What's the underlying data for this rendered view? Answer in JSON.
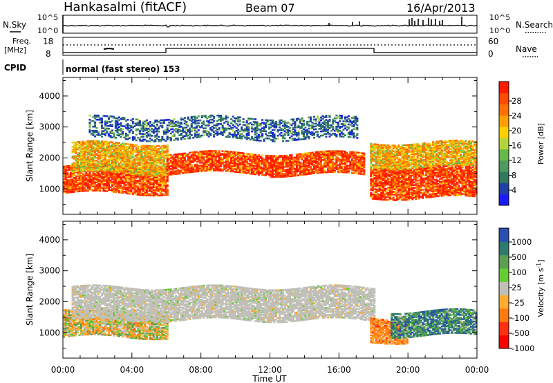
{
  "header": {
    "station": "Hankasalmi (fitACF)",
    "beam": "Beam 07",
    "date": "16/Apr/2013"
  },
  "nsky_panel": {
    "left_label": "N.Sky",
    "left_ticks": [
      "10^5",
      "10^0"
    ],
    "right_ticks": [
      "10^5",
      "10^0"
    ],
    "right_label": "N.Search"
  },
  "freq_panel": {
    "left_label_1": "Freq.",
    "left_label_2": "[MHz]",
    "left_ticks": [
      "18",
      "8"
    ],
    "right_ticks": [
      "60",
      "0"
    ],
    "right_label": "Nave"
  },
  "cpid": {
    "label": "CPID",
    "mode": "normal (fast stereo) 153"
  },
  "chart_data": [
    {
      "type": "heatmap",
      "name_on_plot": "Power",
      "ylabel": "Slant Range [km]",
      "xlabel": "Time UT",
      "x_ticks": [
        "00:00",
        "04:00",
        "08:00",
        "12:00",
        "16:00",
        "20:00",
        "00:00"
      ],
      "y_ticks": [
        "1000",
        "2000",
        "3000",
        "4000"
      ],
      "ylim": [
        180,
        4600
      ],
      "colorbar": {
        "label": "Power [dB]",
        "ticks": [
          "28",
          "24",
          "20",
          "16",
          "12",
          "8",
          "4"
        ],
        "range": [
          0,
          32
        ],
        "colors": [
          "#1a1aff",
          "#1f3fa6",
          "#2f7a5f",
          "#4f9a5f",
          "#66b84a",
          "#b5d43a",
          "#ffd000",
          "#ffa000",
          "#ff7000",
          "#ff4a00",
          "#ff1a00"
        ]
      },
      "bands": [
        {
          "t0": 0.0,
          "t1": 6.0,
          "r0": 850,
          "r1": 1750,
          "power": "strong"
        },
        {
          "t0": 0.5,
          "t1": 6.0,
          "r0": 1500,
          "r1": 2450,
          "power": "medium"
        },
        {
          "t0": 6.0,
          "t1": 12.0,
          "r0": 1500,
          "r1": 2150,
          "power": "strong"
        },
        {
          "t0": 12.0,
          "t1": 17.5,
          "r0": 1450,
          "r1": 2150,
          "power": "strong"
        },
        {
          "t0": 17.8,
          "t1": 24.0,
          "r0": 700,
          "r1": 1700,
          "power": "strong"
        },
        {
          "t0": 17.8,
          "t1": 24.0,
          "r0": 1700,
          "r1": 2500,
          "power": "medium"
        },
        {
          "t0": 1.5,
          "t1": 17.0,
          "r0": 2600,
          "r1": 3300,
          "power": "weak"
        }
      ]
    },
    {
      "type": "heatmap",
      "name_on_plot": "Velocity",
      "ylabel": "Slant Range [km]",
      "xlabel": "Time UT",
      "x_ticks": [
        "00:00",
        "04:00",
        "08:00",
        "12:00",
        "16:00",
        "20:00",
        "00:00"
      ],
      "y_ticks": [
        "1000",
        "2000",
        "3000",
        "4000"
      ],
      "ylim": [
        180,
        4600
      ],
      "colorbar": {
        "label": "Velocity [m s^-1]",
        "ticks": [
          "1000",
          "500",
          "100",
          "25",
          "-25",
          "-100",
          "-500",
          "-1000"
        ],
        "colors": [
          "#2a4fb0",
          "#2e7a6f",
          "#5aa050",
          "#66cc33",
          "#c0c0b8",
          "#ffaa30",
          "#ff7a10",
          "#ff3010",
          "#ff0000"
        ]
      },
      "bands": [
        {
          "t0": 0.0,
          "t1": 6.0,
          "r0": 850,
          "r1": 1750,
          "velocity": "mixed-negative"
        },
        {
          "t0": 0.5,
          "t1": 18.0,
          "r0": 1400,
          "r1": 2450,
          "velocity": "ground-scatter"
        },
        {
          "t0": 17.8,
          "t1": 20.0,
          "r0": 700,
          "r1": 1500,
          "velocity": "negative"
        },
        {
          "t0": 19.0,
          "t1": 24.0,
          "r0": 900,
          "r1": 1700,
          "velocity": "positive"
        }
      ]
    }
  ]
}
